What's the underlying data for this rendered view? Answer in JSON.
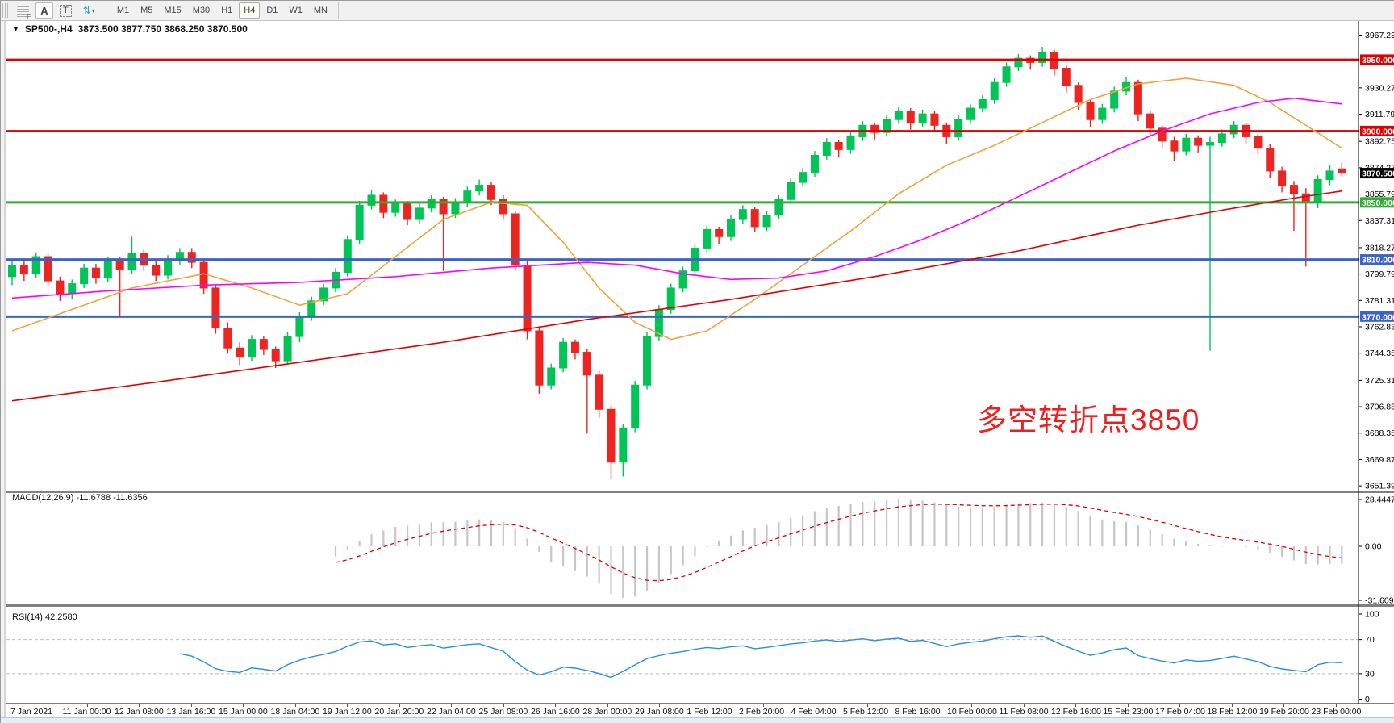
{
  "toolbar": {
    "grip_label": "F",
    "annotate_button": "A",
    "text_button": "T",
    "arrows_icon": "⇅",
    "caret": "▾",
    "timeframes": [
      "M1",
      "M5",
      "M15",
      "M30",
      "H1",
      "H4",
      "D1",
      "W1",
      "MN"
    ],
    "active_timeframe": "H4"
  },
  "chart_header": {
    "collapse_icon": "▼",
    "symbol": "SP500-,H4",
    "ohlc_text": "3873.500 3877.750 3868.250 3870.500"
  },
  "annotation": {
    "text": "多空转折点3850",
    "color": "#f01e1e"
  },
  "indicators": {
    "macd_label": "MACD(12,26,9) -11.6788 -11.6356",
    "macd_axis": [
      "28.4447",
      "0.00",
      "-31.6096"
    ],
    "rsi_label": "RSI(14) 42.2580",
    "rsi_axis": [
      "100",
      "70",
      "30",
      "0"
    ]
  },
  "chart_data": {
    "type": "candlestick",
    "symbol": "SP500-",
    "timeframe": "H4",
    "title": "SP500-,H4",
    "last_bar": {
      "open": 3873.5,
      "high": 3877.75,
      "low": 3868.25,
      "close": 3870.5
    },
    "ylim": [
      3647.5,
      3977.1
    ],
    "price_axis_ticks": [
      "3967.230",
      "3930.270",
      "3911.790",
      "3892.750",
      "3874.270",
      "3855.790",
      "3837.310",
      "3818.270",
      "3799.790",
      "3781.310",
      "3762.830",
      "3744.350",
      "3725.310",
      "3706.830",
      "3688.350",
      "3669.870",
      "3651.390"
    ],
    "hlines": [
      {
        "value": 3950,
        "label": "3950.000",
        "color": "#e00000",
        "width": 2.5
      },
      {
        "value": 3900,
        "label": "3900.000",
        "color": "#e00000",
        "width": 2.5
      },
      {
        "value": 3850,
        "label": "3850.000",
        "color": "#2fae2f",
        "width": 3
      },
      {
        "value": 3810,
        "label": "3810.000",
        "color": "#3c64c8",
        "width": 3
      },
      {
        "value": 3770,
        "label": "3770.000",
        "color": "#3c64c8",
        "width": 3
      }
    ],
    "current_price": {
      "value": 3870.5,
      "label": "3870.500",
      "line_color": "#9a9a9a",
      "box_color": "#000000"
    },
    "candle_colors": {
      "up": "#00c455",
      "down": "#ee2420"
    },
    "candles": [
      [
        3798,
        3810,
        3792,
        3806
      ],
      [
        3806,
        3809,
        3795,
        3800
      ],
      [
        3800,
        3815,
        3797,
        3812
      ],
      [
        3812,
        3814,
        3791,
        3795
      ],
      [
        3795,
        3798,
        3781,
        3786
      ],
      [
        3786,
        3796,
        3782,
        3793
      ],
      [
        3793,
        3807,
        3790,
        3804
      ],
      [
        3804,
        3807,
        3793,
        3797
      ],
      [
        3797,
        3812,
        3794,
        3809
      ],
      [
        3809,
        3812,
        3770,
        3803
      ],
      [
        3803,
        3826,
        3800,
        3814
      ],
      [
        3814,
        3817,
        3802,
        3806
      ],
      [
        3806,
        3809,
        3795,
        3799
      ],
      [
        3799,
        3813,
        3796,
        3810
      ],
      [
        3810,
        3818,
        3806,
        3815
      ],
      [
        3815,
        3818,
        3804,
        3808
      ],
      [
        3808,
        3810,
        3786,
        3790
      ],
      [
        3790,
        3792,
        3758,
        3762
      ],
      [
        3762,
        3766,
        3744,
        3748
      ],
      [
        3748,
        3752,
        3736,
        3742
      ],
      [
        3742,
        3757,
        3739,
        3754
      ],
      [
        3754,
        3756,
        3743,
        3747
      ],
      [
        3747,
        3749,
        3734,
        3739
      ],
      [
        3739,
        3759,
        3737,
        3756
      ],
      [
        3756,
        3773,
        3752,
        3770
      ],
      [
        3770,
        3784,
        3767,
        3781
      ],
      [
        3781,
        3793,
        3778,
        3790
      ],
      [
        3790,
        3804,
        3787,
        3801
      ],
      [
        3801,
        3827,
        3798,
        3824
      ],
      [
        3824,
        3851,
        3821,
        3848
      ],
      [
        3848,
        3859,
        3845,
        3855
      ],
      [
        3855,
        3857,
        3839,
        3843
      ],
      [
        3843,
        3852,
        3840,
        3849
      ],
      [
        3849,
        3851,
        3834,
        3838
      ],
      [
        3838,
        3849,
        3835,
        3846
      ],
      [
        3846,
        3855,
        3843,
        3852
      ],
      [
        3852,
        3854,
        3802,
        3842
      ],
      [
        3842,
        3853,
        3839,
        3850
      ],
      [
        3850,
        3861,
        3847,
        3858
      ],
      [
        3858,
        3866,
        3855,
        3862
      ],
      [
        3862,
        3864,
        3848,
        3852
      ],
      [
        3852,
        3855,
        3838,
        3842
      ],
      [
        3842,
        3844,
        3802,
        3806
      ],
      [
        3806,
        3809,
        3754,
        3760
      ],
      [
        3760,
        3763,
        3716,
        3722
      ],
      [
        3722,
        3737,
        3719,
        3734
      ],
      [
        3734,
        3755,
        3731,
        3752
      ],
      [
        3752,
        3754,
        3740,
        3745
      ],
      [
        3745,
        3747,
        3688,
        3729
      ],
      [
        3729,
        3732,
        3699,
        3705
      ],
      [
        3705,
        3708,
        3656,
        3668
      ],
      [
        3668,
        3695,
        3658,
        3692
      ],
      [
        3692,
        3725,
        3689,
        3722
      ],
      [
        3722,
        3759,
        3719,
        3756
      ],
      [
        3756,
        3778,
        3753,
        3775
      ],
      [
        3775,
        3793,
        3772,
        3790
      ],
      [
        3790,
        3805,
        3787,
        3802
      ],
      [
        3802,
        3821,
        3799,
        3818
      ],
      [
        3818,
        3834,
        3815,
        3831
      ],
      [
        3831,
        3833,
        3821,
        3826
      ],
      [
        3826,
        3841,
        3823,
        3838
      ],
      [
        3838,
        3848,
        3835,
        3845
      ],
      [
        3845,
        3847,
        3829,
        3833
      ],
      [
        3833,
        3844,
        3830,
        3841
      ],
      [
        3841,
        3855,
        3838,
        3852
      ],
      [
        3852,
        3867,
        3849,
        3864
      ],
      [
        3864,
        3874,
        3861,
        3871
      ],
      [
        3871,
        3886,
        3868,
        3883
      ],
      [
        3883,
        3895,
        3880,
        3892
      ],
      [
        3892,
        3894,
        3882,
        3887
      ],
      [
        3887,
        3899,
        3884,
        3896
      ],
      [
        3896,
        3907,
        3893,
        3904
      ],
      [
        3904,
        3906,
        3894,
        3899
      ],
      [
        3899,
        3911,
        3896,
        3908
      ],
      [
        3908,
        3917,
        3905,
        3914
      ],
      [
        3914,
        3916,
        3901,
        3906
      ],
      [
        3906,
        3915,
        3903,
        3912
      ],
      [
        3912,
        3914,
        3899,
        3904
      ],
      [
        3904,
        3906,
        3891,
        3896
      ],
      [
        3896,
        3911,
        3893,
        3908
      ],
      [
        3908,
        3919,
        3905,
        3916
      ],
      [
        3916,
        3925,
        3913,
        3922
      ],
      [
        3922,
        3937,
        3919,
        3934
      ],
      [
        3934,
        3948,
        3931,
        3945
      ],
      [
        3945,
        3954,
        3942,
        3951
      ],
      [
        3951,
        3953,
        3943,
        3948
      ],
      [
        3948,
        3959,
        3945,
        3955
      ],
      [
        3955,
        3957,
        3939,
        3944
      ],
      [
        3944,
        3946,
        3927,
        3932
      ],
      [
        3932,
        3934,
        3915,
        3920
      ],
      [
        3920,
        3922,
        3903,
        3908
      ],
      [
        3908,
        3919,
        3905,
        3916
      ],
      [
        3916,
        3931,
        3913,
        3928
      ],
      [
        3928,
        3938,
        3925,
        3934
      ],
      [
        3934,
        3936,
        3907,
        3912
      ],
      [
        3912,
        3914,
        3897,
        3902
      ],
      [
        3902,
        3904,
        3888,
        3893
      ],
      [
        3893,
        3896,
        3879,
        3886
      ],
      [
        3886,
        3898,
        3883,
        3895
      ],
      [
        3895,
        3897,
        3885,
        3890
      ],
      [
        3890,
        3896,
        3746,
        3892
      ],
      [
        3892,
        3901,
        3889,
        3898
      ],
      [
        3898,
        3907,
        3895,
        3904
      ],
      [
        3904,
        3906,
        3891,
        3896
      ],
      [
        3896,
        3898,
        3884,
        3888
      ],
      [
        3888,
        3891,
        3867,
        3872
      ],
      [
        3872,
        3875,
        3857,
        3862
      ],
      [
        3862,
        3865,
        3830,
        3856
      ],
      [
        3856,
        3860,
        3805,
        3850
      ],
      [
        3850,
        3869,
        3846,
        3866
      ],
      [
        3866,
        3876,
        3862,
        3872
      ],
      [
        3873.5,
        3877.75,
        3868.25,
        3870.5
      ]
    ],
    "moving_averages": [
      {
        "name": "ma-fast-orange",
        "color": "#f2a23c",
        "width": 1.6,
        "points": [
          [
            0,
            3760
          ],
          [
            4,
            3772
          ],
          [
            10,
            3790
          ],
          [
            16,
            3800
          ],
          [
            20,
            3790
          ],
          [
            24,
            3778
          ],
          [
            28,
            3786
          ],
          [
            32,
            3812
          ],
          [
            36,
            3838
          ],
          [
            40,
            3850
          ],
          [
            43,
            3848
          ],
          [
            46,
            3822
          ],
          [
            49,
            3790
          ],
          [
            52,
            3766
          ],
          [
            55,
            3754
          ],
          [
            58,
            3760
          ],
          [
            62,
            3782
          ],
          [
            66,
            3806
          ],
          [
            70,
            3830
          ],
          [
            74,
            3856
          ],
          [
            78,
            3876
          ],
          [
            82,
            3890
          ],
          [
            86,
            3906
          ],
          [
            90,
            3922
          ],
          [
            94,
            3933
          ],
          [
            98,
            3937
          ],
          [
            102,
            3932
          ],
          [
            105,
            3920
          ],
          [
            108,
            3904
          ],
          [
            111,
            3888
          ]
        ]
      },
      {
        "name": "ma-mid-magenta",
        "color": "#ff00ff",
        "width": 1.6,
        "points": [
          [
            0,
            3783
          ],
          [
            8,
            3788
          ],
          [
            16,
            3792
          ],
          [
            24,
            3794
          ],
          [
            32,
            3798
          ],
          [
            40,
            3804
          ],
          [
            48,
            3808
          ],
          [
            52,
            3806
          ],
          [
            56,
            3800
          ],
          [
            60,
            3796
          ],
          [
            64,
            3797
          ],
          [
            68,
            3802
          ],
          [
            72,
            3812
          ],
          [
            76,
            3824
          ],
          [
            80,
            3838
          ],
          [
            84,
            3854
          ],
          [
            88,
            3870
          ],
          [
            92,
            3886
          ],
          [
            96,
            3900
          ],
          [
            100,
            3912
          ],
          [
            104,
            3920
          ],
          [
            107,
            3923
          ],
          [
            111,
            3919
          ]
        ]
      },
      {
        "name": "ma-slow-red",
        "color": "#e00000",
        "width": 1.6,
        "points": [
          [
            0,
            3711
          ],
          [
            12,
            3724
          ],
          [
            24,
            3738
          ],
          [
            36,
            3752
          ],
          [
            48,
            3768
          ],
          [
            60,
            3782
          ],
          [
            72,
            3798
          ],
          [
            84,
            3816
          ],
          [
            94,
            3834
          ],
          [
            102,
            3846
          ],
          [
            107,
            3853
          ],
          [
            111,
            3858
          ]
        ]
      }
    ],
    "macd": {
      "params": [
        12,
        26,
        9
      ],
      "value": -11.6788,
      "signal": -11.6356,
      "axis_max": 28.4447,
      "axis_min": -31.6096,
      "hist_color": "#c6c6c6",
      "signal_color": "#e00000"
    },
    "rsi": {
      "period": 14,
      "value": 42.258,
      "levels": [
        70,
        30
      ],
      "line_color": "#2a8fdd",
      "axis": [
        100,
        70,
        30,
        0
      ]
    },
    "time_labels": [
      "7 Jan 2021",
      "11 Jan 00:00",
      "12 Jan 08:00",
      "13 Jan 16:00",
      "15 Jan 00:00",
      "18 Jan 04:00",
      "19 Jan 12:00",
      "20 Jan 20:00",
      "22 Jan 04:00",
      "25 Jan 08:00",
      "26 Jan 16:00",
      "28 Jan 00:00",
      "29 Jan 08:00",
      "1 Feb 12:00",
      "2 Feb 20:00",
      "4 Feb 04:00",
      "5 Feb 12:00",
      "8 Feb 16:00",
      "10 Feb 00:00",
      "11 Feb 08:00",
      "12 Feb 16:00",
      "15 Feb 23:00",
      "17 Feb 04:00",
      "18 Feb 12:00",
      "19 Feb 20:00",
      "23 Feb 00:00"
    ]
  }
}
